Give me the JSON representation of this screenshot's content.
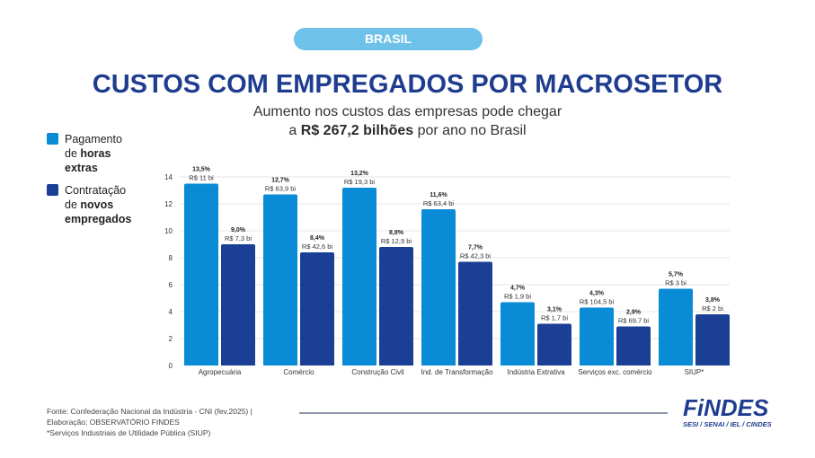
{
  "header": {
    "badge": "BRASIL",
    "title": "CUSTOS COM EMPREGADOS POR MACROSETOR",
    "subtitle_line1": "Aumento nos custos das empresas pode chegar",
    "subtitle_line2_prefix": "a ",
    "subtitle_line2_bold": "R$ 267,2 bilhões",
    "subtitle_line2_suffix": " por ano no Brasil"
  },
  "legend": [
    {
      "pre": "Pagamento",
      "mid": "de ",
      "bold1": "horas",
      "bold2": "extras",
      "color": "#0a8bd6"
    },
    {
      "pre": "Contratação",
      "mid": "de ",
      "bold1": "novos",
      "bold2": "empregados",
      "color": "#1b3f94"
    }
  ],
  "chart_data": {
    "type": "bar",
    "title": "CUSTOS COM EMPREGADOS POR MACROSETOR",
    "xlabel": "",
    "ylabel": "",
    "ylim": [
      0,
      14
    ],
    "yticks": [
      0,
      2,
      4,
      6,
      8,
      10,
      12,
      14
    ],
    "grid": true,
    "legend_position": "left",
    "categories": [
      "Agropecuária",
      "Comércio",
      "Construção Civil",
      "Ind. de Transformação",
      "Indústria Extrativa",
      "Serviços exc. comércio",
      "SIUP*"
    ],
    "series": [
      {
        "name": "Pagamento de horas extras",
        "color": "#0a8bd6",
        "values": [
          13.5,
          12.7,
          13.2,
          11.6,
          4.7,
          4.3,
          5.7
        ],
        "labels_pct": [
          "13,5%",
          "12,7%",
          "13,2%",
          "11,6%",
          "4,7%",
          "4,3%",
          "5,7%"
        ],
        "labels_value": [
          "R$ 11 bi",
          "R$ 63,9 bi",
          "R$ 19,3 bi",
          "R$ 63,4 bi",
          "R$ 1,9 bi",
          "R$ 104,5 bi",
          "R$ 3 bi"
        ]
      },
      {
        "name": "Contratação de novos empregados",
        "color": "#1b3f94",
        "values": [
          9.0,
          8.4,
          8.8,
          7.7,
          3.1,
          2.9,
          3.8
        ],
        "labels_pct": [
          "9,0%",
          "8,4%",
          "8,8%",
          "7,7%",
          "3,1%",
          "2,9%",
          "3,8%"
        ],
        "labels_value": [
          "R$ 7,3 bi",
          "R$ 42,6 bi",
          "R$ 12,9 bi",
          "R$ 42,3 bi",
          "R$ 1,7 bi",
          "R$ 69,7 bi",
          "R$ 2 bi"
        ]
      }
    ]
  },
  "footer": {
    "line1": "Fonte:  Confederação Nacional da Indústria - CNI (fev.2025) |",
    "line2": "Elaboração: OBSERVATÓRIO FINDES",
    "line3": "*Serviços Industriais de Utilidade Pública (SIUP)"
  },
  "logo": {
    "name": "FiNDES",
    "tagline": "SESI / SENAI / IEL / CINDES"
  }
}
